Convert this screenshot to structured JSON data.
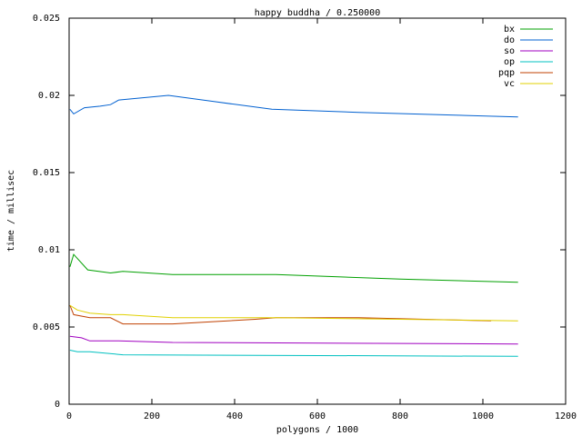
{
  "chart_data": {
    "type": "line",
    "title": "happy buddha / 0.250000",
    "x_label": "polygons / 1000",
    "y_label": "time / millisec",
    "xlim": [
      0,
      1200
    ],
    "xticks": [
      0,
      200,
      400,
      600,
      800,
      1000,
      1200
    ],
    "ylim": [
      0,
      0.025
    ],
    "yticks": [
      0,
      0.005,
      0.01,
      0.015,
      0.02,
      0.025
    ],
    "legend": "top-right",
    "series": [
      {
        "name": "bx",
        "color": "#00a000",
        "x": [
          2,
          11,
          45,
          100,
          130,
          250,
          500,
          800,
          1085
        ],
        "values": [
          0.0089,
          0.0097,
          0.0087,
          0.0085,
          0.0086,
          0.0084,
          0.0084,
          0.0081,
          0.0079
        ]
      },
      {
        "name": "do",
        "color": "#0060d0",
        "x": [
          2,
          11,
          37,
          75,
          100,
          120,
          240,
          350,
          490,
          700,
          1085
        ],
        "values": [
          0.0191,
          0.0188,
          0.0192,
          0.0193,
          0.0194,
          0.0197,
          0.02,
          0.0196,
          0.0191,
          0.0189,
          0.0186
        ]
      },
      {
        "name": "so",
        "color": "#a000c0",
        "x": [
          2,
          30,
          50,
          100,
          120,
          250,
          1085
        ],
        "values": [
          0.0044,
          0.0043,
          0.0041,
          0.0041,
          0.0041,
          0.004,
          0.0039
        ]
      },
      {
        "name": "op",
        "color": "#00c0c0",
        "x": [
          2,
          20,
          50,
          130,
          1085
        ],
        "values": [
          0.0035,
          0.0034,
          0.0034,
          0.0032,
          0.0031
        ]
      },
      {
        "name": "pqp",
        "color": "#c04000",
        "x": [
          2,
          11,
          50,
          100,
          130,
          250,
          450,
          500,
          700,
          1020
        ],
        "values": [
          0.0064,
          0.0058,
          0.0056,
          0.0056,
          0.0052,
          0.0052,
          0.0055,
          0.0056,
          0.0056,
          0.0054
        ]
      },
      {
        "name": "vc",
        "color": "#e0d000",
        "x": [
          2,
          20,
          50,
          100,
          130,
          250,
          500,
          1085
        ],
        "values": [
          0.0064,
          0.0061,
          0.0059,
          0.0058,
          0.0058,
          0.0056,
          0.0056,
          0.0054
        ]
      }
    ]
  }
}
